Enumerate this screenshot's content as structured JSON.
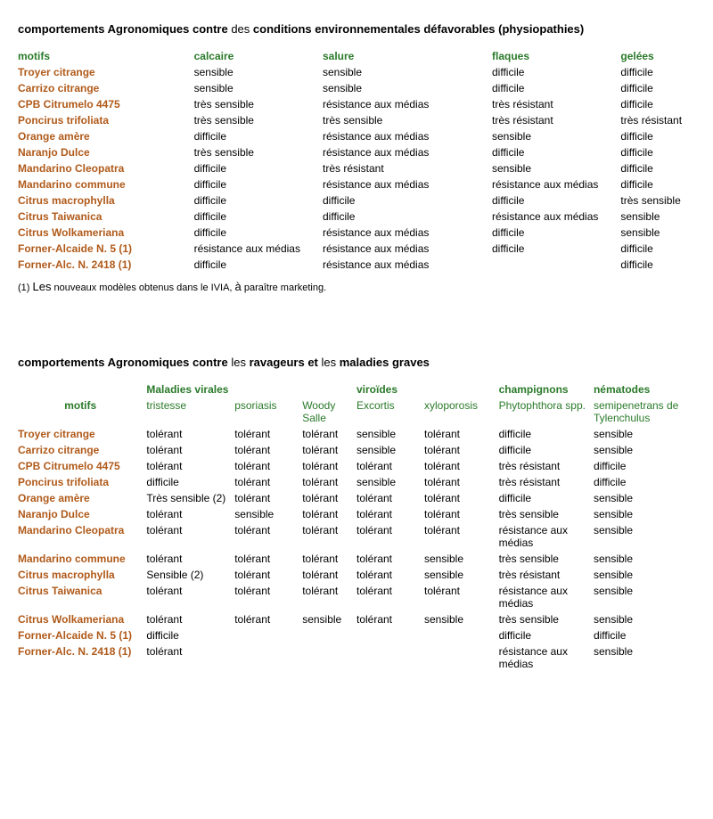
{
  "table1": {
    "title_parts": [
      "comportements Agronomiques contre ",
      "des",
      " conditions environnementales défavorables (physiopathies)"
    ],
    "headers": [
      "motifs",
      "calcaire",
      "salure",
      "flaques",
      "gelées"
    ],
    "col_widths": [
      "26%",
      "19%",
      "25%",
      "19%",
      "11%"
    ],
    "rows": [
      [
        "Troyer citrange",
        "sensible",
        "sensible",
        "difficile",
        "difficile"
      ],
      [
        "Carrizo citrange",
        "sensible",
        "sensible",
        "difficile",
        "difficile"
      ],
      [
        "CPB Citrumelo 4475",
        "très sensible",
        "résistance aux médias",
        "très résistant",
        "difficile"
      ],
      [
        "Poncirus trifoliata",
        "très sensible",
        "très sensible",
        "très résistant",
        "très résistant"
      ],
      [
        "Orange amère",
        "difficile",
        "résistance aux médias",
        "sensible",
        "difficile"
      ],
      [
        "Naranjo Dulce",
        "très sensible",
        "résistance aux médias",
        "difficile",
        "difficile"
      ],
      [
        "Mandarino Cleopatra",
        "difficile",
        "très résistant",
        "sensible",
        "difficile"
      ],
      [
        "Mandarino commune",
        "difficile",
        "résistance aux médias",
        "résistance aux médias",
        "difficile"
      ],
      [
        "Citrus macrophylla",
        "difficile",
        "difficile",
        "difficile",
        "très sensible"
      ],
      [
        "Citrus Taiwanica",
        "difficile",
        "difficile",
        "résistance aux médias",
        "sensible"
      ],
      [
        "Citrus Wolkameriana",
        "difficile",
        "résistance aux médias",
        "difficile",
        "sensible"
      ],
      [
        "Forner-Alcaide N. 5 (1)",
        "résistance aux médias",
        "résistance aux médias",
        "difficile",
        "difficile"
      ],
      [
        "Forner-Alc. N. 2418 (1)",
        "difficile",
        "résistance aux médias",
        "",
        "difficile"
      ]
    ],
    "footnote_parts": [
      "(1) ",
      "Les",
      " nouveaux modèles obtenus dans le IVIA, ",
      "à",
      " paraître marketing."
    ]
  },
  "table2": {
    "title_parts": [
      "comportements Agronomiques contre ",
      "les",
      " ravageurs et ",
      "les",
      " maladies graves"
    ],
    "group_headers": [
      "",
      "Maladies virales",
      "",
      "",
      "viroïdes",
      "",
      "champignons",
      "nématodes"
    ],
    "sub_headers": [
      "motifs",
      "tristesse",
      "psoriasis",
      "Woody Salle",
      "Excortis",
      "xyloporosis",
      "Phytophthora spp.",
      "semipenetrans de Tylenchulus"
    ],
    "col_widths": [
      "19%",
      "13%",
      "10%",
      "8%",
      "10%",
      "11%",
      "14%",
      "15%"
    ],
    "rows": [
      [
        "Troyer citrange",
        "tolérant",
        "tolérant",
        "tolérant",
        "sensible",
        "tolérant",
        "difficile",
        "sensible"
      ],
      [
        "Carrizo citrange",
        "tolérant",
        "tolérant",
        "tolérant",
        "sensible",
        "tolérant",
        "difficile",
        "sensible"
      ],
      [
        "CPB Citrumelo 4475",
        "tolérant",
        "tolérant",
        "tolérant",
        "tolérant",
        "tolérant",
        "très résistant",
        "difficile"
      ],
      [
        "Poncirus trifoliata",
        "difficile",
        "tolérant",
        "tolérant",
        "sensible",
        "tolérant",
        "très résistant",
        "difficile"
      ],
      [
        "Orange amère",
        "Très sensible (2)",
        "tolérant",
        "tolérant",
        "tolérant",
        "tolérant",
        "difficile",
        "sensible"
      ],
      [
        "Naranjo Dulce",
        "tolérant",
        "sensible",
        "tolérant",
        "tolérant",
        "tolérant",
        "très sensible",
        "sensible"
      ],
      [
        "Mandarino Cleopatra",
        "tolérant",
        "tolérant",
        "tolérant",
        "tolérant",
        "tolérant",
        "résistance aux médias",
        "sensible"
      ],
      [
        "Mandarino commune",
        "tolérant",
        "tolérant",
        "tolérant",
        "tolérant",
        "sensible",
        "très sensible",
        "sensible"
      ],
      [
        "Citrus macrophylla",
        "Sensible (2)",
        "tolérant",
        "tolérant",
        "tolérant",
        "sensible",
        "très résistant",
        "sensible"
      ],
      [
        "Citrus Taiwanica",
        "tolérant",
        "tolérant",
        "tolérant",
        "tolérant",
        "tolérant",
        "résistance aux médias",
        "sensible"
      ],
      [
        "Citrus Wolkameriana",
        "tolérant",
        "tolérant",
        "sensible",
        "tolérant",
        "sensible",
        "très sensible",
        "sensible"
      ],
      [
        "Forner-Alcaide N. 5 (1)",
        "difficile",
        "",
        "",
        "",
        "",
        "difficile",
        "difficile"
      ],
      [
        "Forner-Alc. N. 2418 (1)",
        "tolérant",
        "",
        "",
        "",
        "",
        "résistance aux médias",
        "sensible"
      ]
    ]
  }
}
